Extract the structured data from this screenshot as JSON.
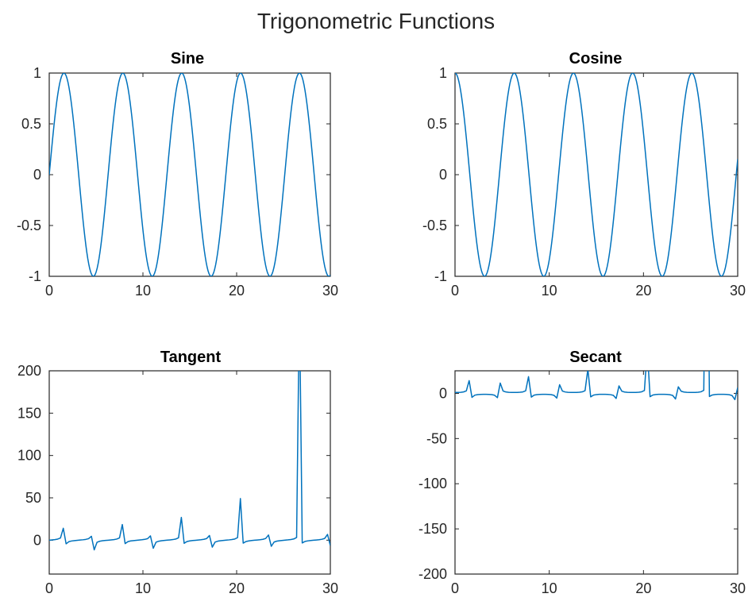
{
  "figure": {
    "title": "Trigonometric Functions"
  },
  "colors": {
    "line": "#0072BD",
    "axes": "#262626",
    "background": "#ffffff"
  },
  "chart_data": [
    {
      "type": "line",
      "title": "Sine",
      "function": "sin",
      "xlim": [
        0,
        30
      ],
      "ylim": [
        -1,
        1
      ],
      "xticks": [
        0,
        10,
        20,
        30
      ],
      "yticks": [
        -1,
        -0.5,
        0,
        0.5,
        1
      ],
      "xtick_labels": [
        "0",
        "10",
        "20",
        "30"
      ],
      "ytick_labels": [
        "-1",
        "-0.5",
        "0",
        "0.5",
        "1"
      ],
      "x": {
        "start": 0,
        "end": 30,
        "count": 300
      },
      "series": [
        {
          "values_from": "sin(x)"
        }
      ],
      "grid": false
    },
    {
      "type": "line",
      "title": "Cosine",
      "function": "cos",
      "xlim": [
        0,
        30
      ],
      "ylim": [
        -1,
        1
      ],
      "xticks": [
        0,
        10,
        20,
        30
      ],
      "yticks": [
        -1,
        -0.5,
        0,
        0.5,
        1
      ],
      "xtick_labels": [
        "0",
        "10",
        "20",
        "30"
      ],
      "ytick_labels": [
        "-1",
        "-0.5",
        "0",
        "0.5",
        "1"
      ],
      "x": {
        "start": 0,
        "end": 30,
        "count": 300
      },
      "series": [
        {
          "values_from": "cos(x)"
        }
      ],
      "grid": false
    },
    {
      "type": "line",
      "title": "Tangent",
      "function": "tan",
      "xlim": [
        0,
        30
      ],
      "ylim": [
        -40,
        200
      ],
      "xticks": [
        0,
        10,
        20,
        30
      ],
      "yticks": [
        0,
        50,
        100,
        150,
        200
      ],
      "xtick_labels": [
        "0",
        "10",
        "20",
        "30"
      ],
      "ytick_labels": [
        "0",
        "50",
        "100",
        "150",
        "200"
      ],
      "x": {
        "start": 0,
        "end": 30,
        "count": 101
      },
      "series": [
        {
          "values_from": "tan(x)"
        }
      ],
      "grid": false
    },
    {
      "type": "line",
      "title": "Secant",
      "function": "sec",
      "xlim": [
        0,
        30
      ],
      "ylim": [
        -200,
        25
      ],
      "xticks": [
        0,
        10,
        20,
        30
      ],
      "yticks": [
        -200,
        -150,
        -100,
        -50,
        0
      ],
      "xtick_labels": [
        "0",
        "10",
        "20",
        "30"
      ],
      "ytick_labels": [
        "-200",
        "-150",
        "-100",
        "-50",
        "0"
      ],
      "x": {
        "start": 0,
        "end": 30,
        "count": 101
      },
      "series": [
        {
          "values_from": "sec(x)"
        }
      ],
      "grid": false
    }
  ]
}
